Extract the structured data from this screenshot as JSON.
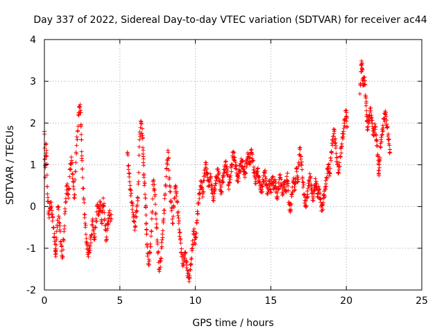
{
  "chart_data": {
    "type": "scatter",
    "title": "Day 337 of 2022, Sidereal Day-to-day VTEC variation (SDTVAR) for receiver ac44",
    "xlabel": "GPS time / hours",
    "ylabel": "SDTVAR / TECUs",
    "xlim": [
      0,
      25
    ],
    "ylim": [
      -2,
      4
    ],
    "xticks": [
      0,
      5,
      10,
      15,
      20,
      25
    ],
    "yticks": [
      -2,
      -1,
      0,
      1,
      2,
      3,
      4
    ],
    "grid": true,
    "marker": "+",
    "color": "#ff0000",
    "series": [
      {
        "name": "SDTVAR",
        "points": [
          [
            0.0,
            1.8
          ],
          [
            0.05,
            0.7
          ],
          [
            0.1,
            1.5
          ],
          [
            0.15,
            1.2
          ],
          [
            0.2,
            0.3
          ],
          [
            0.3,
            -0.2
          ],
          [
            0.4,
            0.1
          ],
          [
            0.5,
            -0.1
          ],
          [
            0.6,
            -0.5
          ],
          [
            0.7,
            -0.9
          ],
          [
            0.75,
            -1.2
          ],
          [
            0.8,
            -0.8
          ],
          [
            0.9,
            0.0
          ],
          [
            1.0,
            -0.4
          ],
          [
            1.1,
            -0.9
          ],
          [
            1.2,
            -1.2
          ],
          [
            1.3,
            -0.6
          ],
          [
            1.4,
            0.1
          ],
          [
            1.5,
            0.5
          ],
          [
            1.6,
            0.2
          ],
          [
            1.7,
            0.9
          ],
          [
            1.8,
            1.1
          ],
          [
            1.9,
            0.6
          ],
          [
            2.0,
            0.2
          ],
          [
            2.1,
            1.3
          ],
          [
            2.2,
            1.8
          ],
          [
            2.3,
            2.4
          ],
          [
            2.4,
            2.3
          ],
          [
            2.45,
            1.6
          ],
          [
            2.5,
            0.9
          ],
          [
            2.6,
            0.2
          ],
          [
            2.7,
            -0.4
          ],
          [
            2.8,
            -0.9
          ],
          [
            2.9,
            -1.1
          ],
          [
            3.0,
            -1.0
          ],
          [
            3.1,
            -0.7
          ],
          [
            3.2,
            -0.3
          ],
          [
            3.3,
            -0.8
          ],
          [
            3.4,
            -0.5
          ],
          [
            3.5,
            0.0
          ],
          [
            3.6,
            -0.2
          ],
          [
            3.7,
            0.1
          ],
          [
            3.8,
            -0.4
          ],
          [
            3.9,
            0.2
          ],
          [
            4.0,
            -0.3
          ],
          [
            4.1,
            -0.8
          ],
          [
            4.2,
            -0.4
          ],
          [
            4.3,
            -0.2
          ],
          [
            4.45,
            -0.3
          ],
          [
            5.5,
            1.3
          ],
          [
            5.6,
            0.8
          ],
          [
            5.7,
            0.4
          ],
          [
            5.8,
            0.1
          ],
          [
            5.9,
            -0.2
          ],
          [
            6.0,
            -0.5
          ],
          [
            6.1,
            -0.1
          ],
          [
            6.2,
            0.2
          ],
          [
            6.3,
            1.6
          ],
          [
            6.4,
            2.0
          ],
          [
            6.5,
            1.7
          ],
          [
            6.55,
            1.2
          ],
          [
            6.6,
            0.7
          ],
          [
            6.7,
            0.2
          ],
          [
            6.75,
            -0.4
          ],
          [
            6.8,
            -0.9
          ],
          [
            6.9,
            -1.4
          ],
          [
            7.0,
            -1.1
          ],
          [
            7.1,
            -0.6
          ],
          [
            7.2,
            0.6
          ],
          [
            7.3,
            0.4
          ],
          [
            7.4,
            -0.3
          ],
          [
            7.5,
            -0.9
          ],
          [
            7.6,
            -1.5
          ],
          [
            7.7,
            -1.3
          ],
          [
            7.8,
            -0.8
          ],
          [
            7.9,
            -0.3
          ],
          [
            8.0,
            0.3
          ],
          [
            8.1,
            0.9
          ],
          [
            8.2,
            1.3
          ],
          [
            8.3,
            0.5
          ],
          [
            8.4,
            0.1
          ],
          [
            8.5,
            -0.4
          ],
          [
            8.6,
            0.2
          ],
          [
            8.7,
            0.5
          ],
          [
            8.8,
            0.1
          ],
          [
            8.9,
            -0.4
          ],
          [
            9.0,
            -0.8
          ],
          [
            9.1,
            -1.2
          ],
          [
            9.2,
            -1.4
          ],
          [
            9.3,
            -1.1
          ],
          [
            9.4,
            -1.3
          ],
          [
            9.5,
            -1.6
          ],
          [
            9.6,
            -1.7
          ],
          [
            9.7,
            -1.4
          ],
          [
            9.8,
            -1.0
          ],
          [
            9.9,
            -0.6
          ],
          [
            10.0,
            -0.9
          ],
          [
            10.1,
            -0.4
          ],
          [
            10.2,
            0.1
          ],
          [
            10.3,
            0.4
          ],
          [
            10.4,
            0.6
          ],
          [
            10.5,
            0.3
          ],
          [
            10.6,
            0.8
          ],
          [
            10.7,
            1.0
          ],
          [
            10.8,
            0.7
          ],
          [
            10.9,
            0.5
          ],
          [
            11.0,
            0.7
          ],
          [
            11.1,
            0.4
          ],
          [
            11.2,
            0.2
          ],
          [
            11.3,
            0.5
          ],
          [
            11.4,
            0.7
          ],
          [
            11.5,
            0.9
          ],
          [
            11.6,
            0.6
          ],
          [
            11.7,
            0.3
          ],
          [
            11.8,
            0.6
          ],
          [
            11.9,
            0.8
          ],
          [
            12.0,
            1.0
          ],
          [
            12.1,
            0.9
          ],
          [
            12.2,
            0.5
          ],
          [
            12.3,
            0.7
          ],
          [
            12.4,
            1.0
          ],
          [
            12.5,
            1.3
          ],
          [
            12.6,
            1.1
          ],
          [
            12.7,
            0.9
          ],
          [
            12.8,
            0.6
          ],
          [
            12.9,
            0.8
          ],
          [
            13.0,
            1.0
          ],
          [
            13.1,
            1.1
          ],
          [
            13.2,
            0.9
          ],
          [
            13.3,
            0.8
          ],
          [
            13.4,
            1.1
          ],
          [
            13.5,
            1.2
          ],
          [
            13.6,
            1.0
          ],
          [
            13.7,
            1.3
          ],
          [
            13.8,
            1.1
          ],
          [
            13.9,
            0.8
          ],
          [
            14.0,
            0.6
          ],
          [
            14.1,
            0.9
          ],
          [
            14.2,
            0.7
          ],
          [
            14.3,
            0.5
          ],
          [
            14.4,
            0.4
          ],
          [
            14.5,
            0.6
          ],
          [
            14.6,
            0.8
          ],
          [
            14.7,
            0.5
          ],
          [
            14.8,
            0.3
          ],
          [
            14.9,
            0.6
          ],
          [
            15.0,
            0.4
          ],
          [
            15.1,
            0.7
          ],
          [
            15.2,
            0.5
          ],
          [
            15.3,
            0.6
          ],
          [
            15.4,
            0.2
          ],
          [
            15.5,
            0.4
          ],
          [
            15.6,
            0.7
          ],
          [
            15.7,
            0.5
          ],
          [
            15.8,
            0.3
          ],
          [
            15.9,
            0.6
          ],
          [
            16.0,
            0.4
          ],
          [
            16.1,
            0.8
          ],
          [
            16.2,
            0.1
          ],
          [
            16.3,
            -0.1
          ],
          [
            16.4,
            0.3
          ],
          [
            16.5,
            0.6
          ],
          [
            16.6,
            0.4
          ],
          [
            16.7,
            0.9
          ],
          [
            16.8,
            0.6
          ],
          [
            16.9,
            1.4
          ],
          [
            17.0,
            1.2
          ],
          [
            17.1,
            0.7
          ],
          [
            17.2,
            0.3
          ],
          [
            17.3,
            0.0
          ],
          [
            17.4,
            0.2
          ],
          [
            17.5,
            0.5
          ],
          [
            17.6,
            0.7
          ],
          [
            17.7,
            0.4
          ],
          [
            17.8,
            0.2
          ],
          [
            17.9,
            0.5
          ],
          [
            18.0,
            0.6
          ],
          [
            18.1,
            0.3
          ],
          [
            18.2,
            0.4
          ],
          [
            18.3,
            0.1
          ],
          [
            18.4,
            -0.1
          ],
          [
            18.5,
            0.2
          ],
          [
            18.6,
            0.4
          ],
          [
            18.7,
            0.7
          ],
          [
            18.8,
            1.0
          ],
          [
            18.9,
            0.8
          ],
          [
            19.0,
            1.3
          ],
          [
            19.1,
            1.6
          ],
          [
            19.2,
            1.8
          ],
          [
            19.3,
            1.4
          ],
          [
            19.4,
            1.0
          ],
          [
            19.5,
            0.8
          ],
          [
            19.6,
            1.2
          ],
          [
            19.7,
            1.5
          ],
          [
            19.8,
            1.8
          ],
          [
            19.9,
            2.1
          ],
          [
            20.0,
            2.3
          ],
          [
            20.05,
            1.9
          ],
          [
            20.9,
            2.7
          ],
          [
            21.0,
            3.4
          ],
          [
            21.05,
            3.3
          ],
          [
            21.1,
            2.9
          ],
          [
            21.2,
            3.1
          ],
          [
            21.3,
            2.6
          ],
          [
            21.35,
            2.2
          ],
          [
            21.4,
            1.9
          ],
          [
            21.5,
            2.1
          ],
          [
            21.6,
            2.3
          ],
          [
            21.7,
            2.0
          ],
          [
            21.8,
            1.7
          ],
          [
            21.9,
            1.9
          ],
          [
            22.0,
            1.6
          ],
          [
            22.1,
            1.2
          ],
          [
            22.15,
            0.8
          ],
          [
            22.2,
            1.1
          ],
          [
            22.3,
            1.6
          ],
          [
            22.4,
            1.8
          ],
          [
            22.5,
            2.1
          ],
          [
            22.6,
            2.2
          ],
          [
            22.7,
            1.9
          ],
          [
            22.8,
            1.6
          ],
          [
            22.9,
            1.3
          ]
        ]
      }
    ]
  }
}
